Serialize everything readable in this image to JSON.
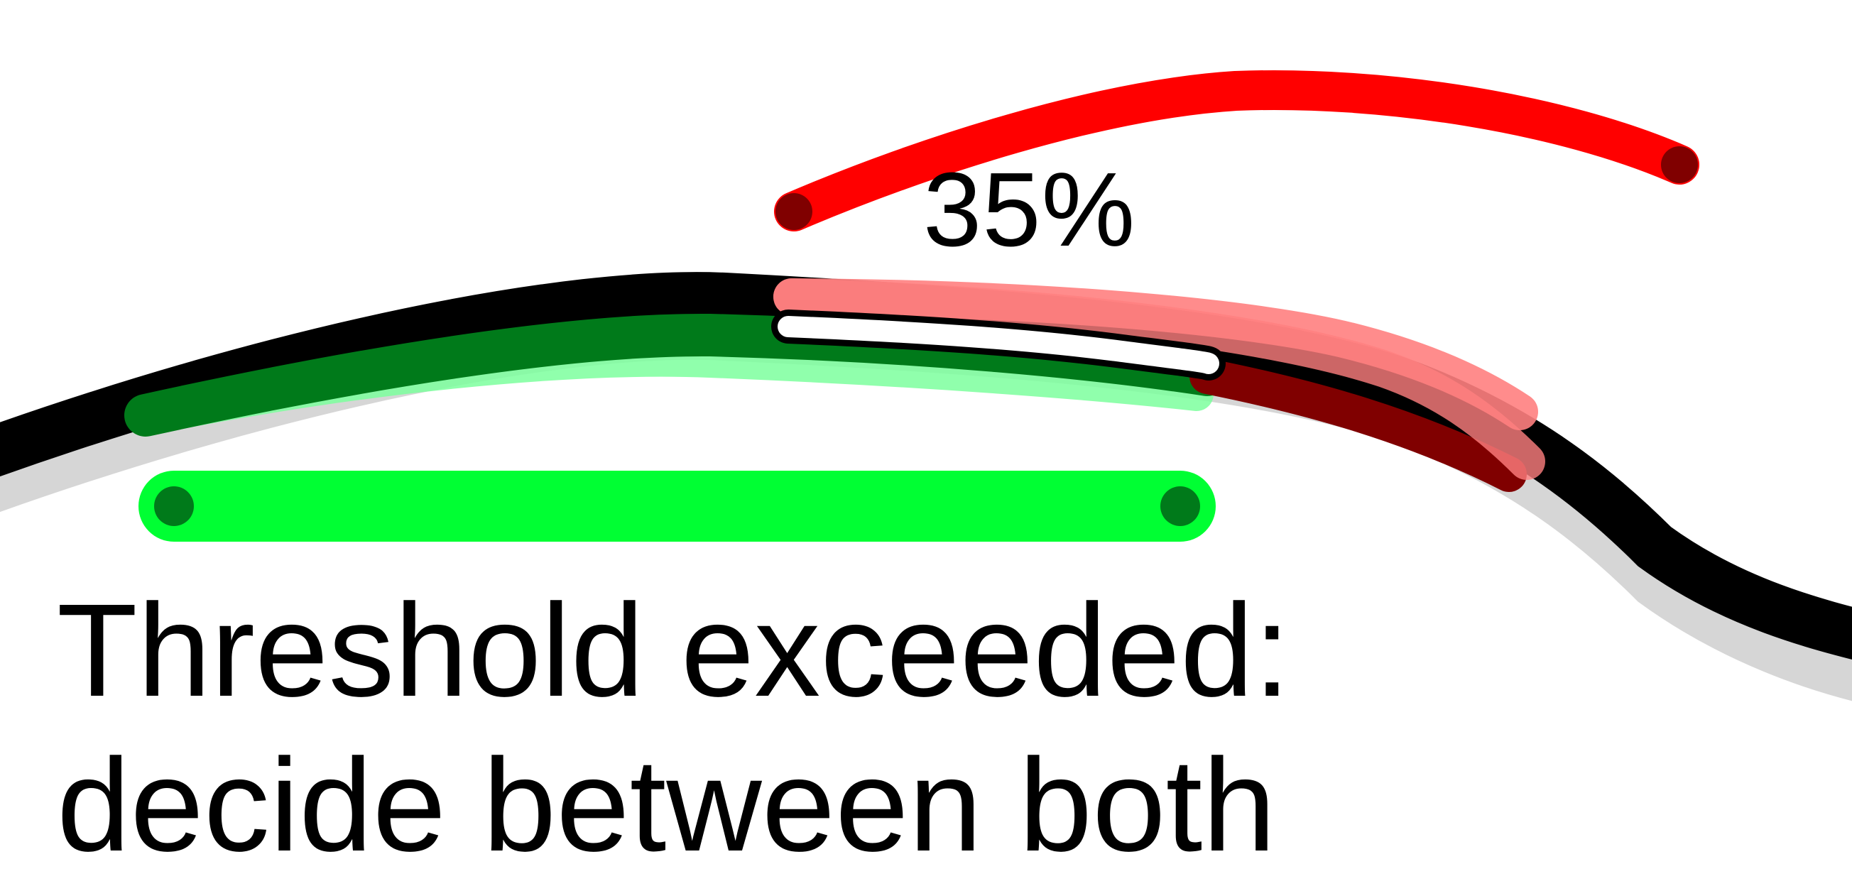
{
  "overlay": {
    "percentage_label": "35%",
    "message_line1": "Threshold exceeded:",
    "message_line2": "decide between both"
  },
  "colors": {
    "background": "#ffffff",
    "road": "#000000",
    "road_shadow": "#cfcfcf",
    "path_red": "#ff0000",
    "path_red_dark": "#800000",
    "path_red_translucent": "#ff8080",
    "path_green": "#00ff33",
    "path_green_dark": "#007a1a",
    "path_green_translucent": "#7dff9e",
    "current_position": "#ffffff"
  },
  "icons": {
    "endpoint_marker": "dot-icon"
  }
}
